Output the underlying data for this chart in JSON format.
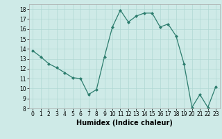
{
  "x": [
    0,
    1,
    2,
    3,
    4,
    5,
    6,
    7,
    8,
    9,
    10,
    11,
    12,
    13,
    14,
    15,
    16,
    17,
    18,
    19,
    20,
    21,
    22,
    23
  ],
  "y": [
    13.8,
    13.2,
    12.5,
    12.1,
    11.6,
    11.1,
    11.0,
    9.4,
    9.9,
    13.2,
    16.2,
    17.9,
    16.7,
    17.3,
    17.6,
    17.6,
    16.2,
    16.5,
    15.3,
    12.5,
    8.1,
    9.4,
    8.1,
    10.2
  ],
  "line_color": "#2d7d6e",
  "marker": "D",
  "marker_size": 2.0,
  "bg_color": "#ceeae7",
  "grid_color": "#b0d8d4",
  "xlabel": "Humidex (Indice chaleur)",
  "ylim": [
    8,
    18.5
  ],
  "xlim": [
    -0.5,
    23.5
  ],
  "yticks": [
    8,
    9,
    10,
    11,
    12,
    13,
    14,
    15,
    16,
    17,
    18
  ],
  "xticks": [
    0,
    1,
    2,
    3,
    4,
    5,
    6,
    7,
    8,
    9,
    10,
    11,
    12,
    13,
    14,
    15,
    16,
    17,
    18,
    19,
    20,
    21,
    22,
    23
  ],
  "tick_fontsize": 5.5,
  "xlabel_fontsize": 7.0,
  "xlabel_fontweight": "bold"
}
